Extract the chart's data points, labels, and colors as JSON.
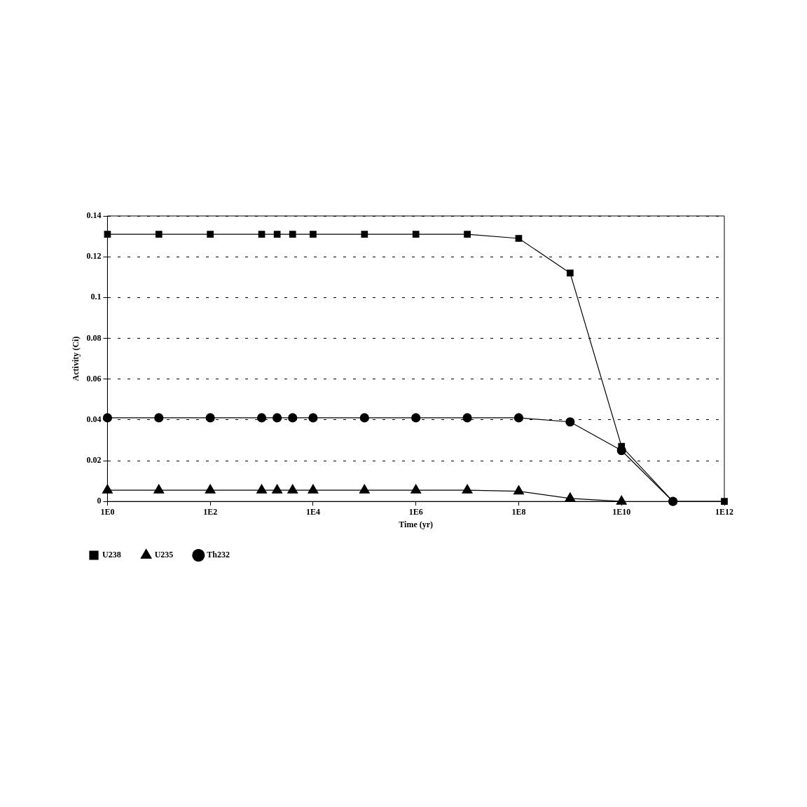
{
  "chart_data": {
    "type": "line",
    "xlabel": "Time (yr)",
    "ylabel": "Activity (Ci)",
    "log": "x",
    "x": [
      1,
      10,
      100,
      1000,
      2000,
      4000,
      10000,
      100000,
      1000000,
      10000000,
      100000000,
      1000000000,
      10000000000,
      100000000000,
      1000000000000
    ],
    "series": [
      {
        "name": "U238",
        "color": "#000000",
        "marker": "square",
        "values": [
          0.131,
          0.131,
          0.131,
          0.131,
          0.131,
          0.131,
          0.131,
          0.131,
          0.131,
          0.131,
          0.129,
          0.112,
          0.027,
          0,
          0
        ]
      },
      {
        "name": "U235",
        "color": "#000000",
        "marker": "triangle",
        "values": [
          0.0055,
          0.0055,
          0.0055,
          0.0055,
          0.0055,
          0.0055,
          0.0055,
          0.0055,
          0.0055,
          0.0055,
          0.005,
          0.0015,
          0,
          null,
          null
        ]
      },
      {
        "name": "Th232",
        "color": "#000000",
        "marker": "circle",
        "values": [
          0.041,
          0.041,
          0.041,
          0.041,
          0.041,
          0.041,
          0.041,
          0.041,
          0.041,
          0.041,
          0.041,
          0.039,
          0.025,
          0,
          null
        ]
      }
    ],
    "xlim": [
      1,
      1000000000000
    ],
    "xticks": [
      {
        "value": 1,
        "label": "1E0"
      },
      {
        "value": 100,
        "label": "1E2"
      },
      {
        "value": 10000,
        "label": "1E4"
      },
      {
        "value": 1000000,
        "label": "1E6"
      },
      {
        "value": 100000000,
        "label": "1E8"
      },
      {
        "value": 10000000000,
        "label": "1E10"
      },
      {
        "value": 1000000000000,
        "label": "1E12"
      }
    ],
    "ylim": [
      0,
      0.14
    ],
    "yticks": [
      0,
      0.02,
      0.04,
      0.06,
      0.08,
      0.1,
      0.12,
      0.14
    ],
    "grid": "y",
    "legend": "bottom",
    "line_style": "solid"
  }
}
